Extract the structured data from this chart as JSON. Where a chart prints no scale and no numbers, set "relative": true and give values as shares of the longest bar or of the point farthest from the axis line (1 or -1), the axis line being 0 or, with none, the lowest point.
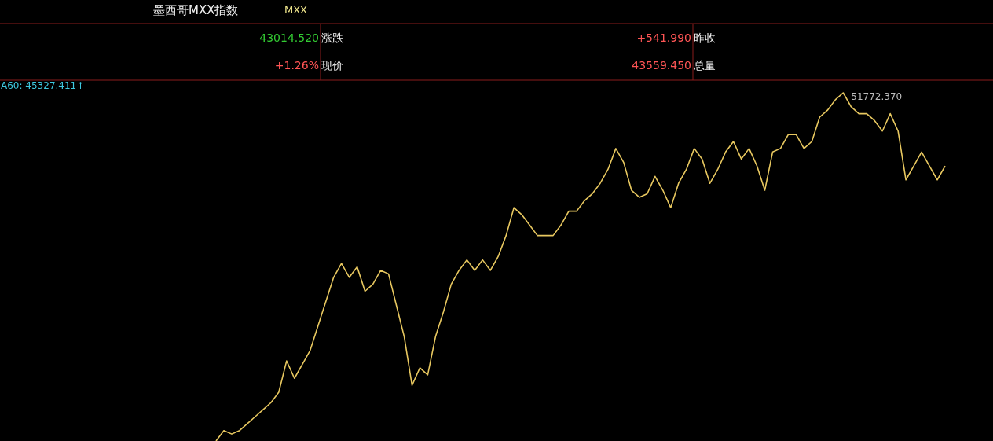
{
  "chart_data": {
    "type": "line",
    "title": "墨西哥MXX指数",
    "subtitle": "MXX",
    "relative": true,
    "marker": "none",
    "line_style": "solid",
    "annotations": [
      "43014.520",
      "涨跌",
      "+541.990",
      "昨收",
      "+1.26%",
      "现价",
      "43559.450",
      "总量",
      "A60: 45327.411↑",
      "51772.370"
    ],
    "categories": [
      null,
      null,
      null,
      null,
      null,
      null,
      null,
      null,
      null,
      null,
      null,
      null,
      null,
      null,
      null,
      null,
      null,
      null,
      null,
      null,
      null,
      null,
      null,
      null,
      null,
      null,
      null,
      null,
      null,
      null,
      null,
      null,
      null,
      null,
      null,
      null,
      null,
      null,
      null,
      null,
      null,
      null,
      null,
      null,
      null,
      null,
      null,
      null,
      null,
      null,
      null,
      null,
      null,
      null,
      null,
      null,
      null,
      null,
      null,
      null,
      null,
      null,
      null,
      null,
      null,
      null,
      null,
      null,
      null,
      null,
      null,
      null,
      null,
      null,
      null,
      null,
      null,
      null,
      null,
      null,
      null,
      null,
      null,
      null,
      null,
      null,
      null,
      null,
      null,
      null,
      null,
      null,
      null,
      null
    ],
    "series": [
      {
        "color": "#e8c860",
        "values": [
          0,
          0.03,
          0.02,
          0.03,
          0.05,
          0.07,
          0.09,
          0.11,
          0.14,
          0.23,
          0.18,
          0.22,
          0.26,
          0.33,
          0.4,
          0.47,
          0.51,
          0.47,
          0.5,
          0.43,
          0.45,
          0.49,
          0.48,
          0.39,
          0.3,
          0.16,
          0.21,
          0.19,
          0.3,
          0.37,
          0.45,
          0.49,
          0.52,
          0.49,
          0.52,
          0.49,
          0.53,
          0.59,
          0.67,
          0.65,
          0.62,
          0.59,
          0.59,
          0.59,
          0.62,
          0.66,
          0.66,
          0.69,
          0.71,
          0.74,
          0.78,
          0.84,
          0.8,
          0.72,
          0.7,
          0.71,
          0.76,
          0.72,
          0.67,
          0.74,
          0.78,
          0.84,
          0.81,
          0.74,
          0.78,
          0.83,
          0.86,
          0.81,
          0.84,
          0.79,
          0.72,
          0.83,
          0.84,
          0.88,
          0.88,
          0.84,
          0.86,
          0.93,
          0.95,
          0.98,
          1,
          0.96,
          0.94,
          0.94,
          0.92,
          0.89,
          0.94,
          0.89,
          0.75,
          0.79,
          0.83,
          0.79,
          0.75,
          0.79
        ]
      }
    ]
  }
}
